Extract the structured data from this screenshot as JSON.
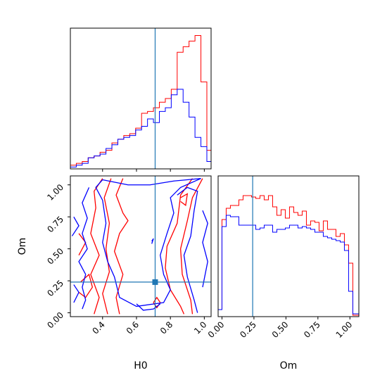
{
  "chart_data": [
    {
      "panel": "H0 marginal",
      "type": "step-histogram",
      "xlim": [
        0.21,
        1.04
      ],
      "truth": 0.71,
      "bin_edges": [
        0.21,
        0.245,
        0.28,
        0.315,
        0.35,
        0.385,
        0.42,
        0.455,
        0.49,
        0.525,
        0.56,
        0.595,
        0.63,
        0.665,
        0.7,
        0.735,
        0.77,
        0.805,
        0.84,
        0.875,
        0.91,
        0.945,
        0.98,
        1.015,
        1.04
      ],
      "series": [
        {
          "color": "#ff0000",
          "values": [
            0.02,
            0.03,
            0.04,
            0.06,
            0.07,
            0.09,
            0.1,
            0.14,
            0.16,
            0.18,
            0.19,
            0.22,
            0.3,
            0.31,
            0.33,
            0.36,
            0.38,
            0.43,
            0.63,
            0.66,
            0.69,
            0.72,
            0.47,
            0.1
          ]
        },
        {
          "color": "#0000ff",
          "values": [
            0.01,
            0.02,
            0.03,
            0.06,
            0.07,
            0.08,
            0.11,
            0.13,
            0.16,
            0.17,
            0.18,
            0.21,
            0.23,
            0.27,
            0.25,
            0.31,
            0.33,
            0.4,
            0.43,
            0.36,
            0.28,
            0.17,
            0.12,
            0.04
          ]
        }
      ],
      "x_ticks": [
        0.4,
        0.6,
        0.8,
        1.0
      ]
    },
    {
      "panel": "H0 vs Om",
      "type": "contour",
      "xlabel": "H0",
      "ylabel": "Om",
      "xlim": [
        0.21,
        1.04
      ],
      "ylim": [
        -0.03,
        1.07
      ],
      "x_ticks": [
        "0.4",
        "0.6",
        "0.8",
        "1.0"
      ],
      "y_ticks": [
        "0.00",
        "0.25",
        "0.50",
        "0.75",
        "1.00"
      ],
      "truth": {
        "H0": 0.71,
        "Om": 0.24
      },
      "series": [
        {
          "color": "#ff0000",
          "contours": [
            [
              [
                0.4,
                1.05
              ],
              [
                0.35,
                0.95
              ],
              [
                0.36,
                0.82
              ],
              [
                0.33,
                0.62
              ],
              [
                0.38,
                0.45
              ],
              [
                0.33,
                0.3
              ],
              [
                0.38,
                0.12
              ],
              [
                0.35,
                -0.01
              ]
            ],
            [
              [
                0.45,
                1.05
              ],
              [
                0.41,
                0.9
              ],
              [
                0.44,
                0.7
              ],
              [
                0.42,
                0.5
              ],
              [
                0.44,
                0.32
              ],
              [
                0.4,
                0.15
              ],
              [
                0.43,
                -0.01
              ]
            ],
            [
              [
                0.52,
                1.05
              ],
              [
                0.48,
                0.92
              ],
              [
                0.52,
                0.78
              ],
              [
                0.55,
                0.72
              ],
              [
                0.5,
                0.62
              ],
              [
                0.47,
                0.48
              ],
              [
                0.52,
                0.3
              ],
              [
                0.48,
                0.12
              ],
              [
                0.5,
                -0.01
              ]
            ],
            [
              [
                0.93,
                1.05
              ],
              [
                0.86,
                0.92
              ],
              [
                0.84,
                0.7
              ],
              [
                0.78,
                0.52
              ],
              [
                0.77,
                0.35
              ],
              [
                0.8,
                0.18
              ],
              [
                0.86,
                0.05
              ],
              [
                0.88,
                -0.01
              ]
            ],
            [
              [
                0.99,
                1.05
              ],
              [
                0.93,
                0.9
              ],
              [
                0.9,
                0.72
              ],
              [
                0.86,
                0.5
              ],
              [
                0.87,
                0.3
              ],
              [
                0.92,
                0.1
              ],
              [
                0.93,
                -0.01
              ]
            ],
            [
              [
                0.26,
                0.62
              ],
              [
                0.3,
                0.55
              ],
              [
                0.26,
                0.45
              ]
            ],
            [
              [
                0.27,
                0.24
              ],
              [
                0.32,
                0.3
              ],
              [
                0.34,
                0.2
              ],
              [
                0.3,
                0.12
              ],
              [
                0.26,
                0.16
              ]
            ],
            [
              [
                0.7,
                0.08
              ],
              [
                0.72,
                0.12
              ],
              [
                0.74,
                0.08
              ],
              [
                0.72,
                0.04
              ],
              [
                0.7,
                0.08
              ]
            ],
            [
              [
                0.86,
                0.9
              ],
              [
                0.9,
                0.93
              ],
              [
                0.89,
                0.84
              ],
              [
                0.86,
                0.87
              ]
            ]
          ]
        },
        {
          "color": "#0000ff",
          "contours": [
            [
              [
                0.4,
                1.04
              ],
              [
                0.55,
                1.0
              ],
              [
                0.68,
                1.0
              ],
              [
                0.82,
                1.03
              ],
              [
                0.98,
                1.05
              ],
              [
                0.86,
                0.98
              ],
              [
                0.8,
                0.9
              ],
              [
                0.82,
                0.78
              ],
              [
                0.78,
                0.62
              ],
              [
                0.74,
                0.45
              ],
              [
                0.76,
                0.3
              ],
              [
                0.8,
                0.18
              ],
              [
                0.76,
                0.08
              ],
              [
                0.6,
                0.05
              ],
              [
                0.5,
                0.12
              ],
              [
                0.47,
                0.28
              ],
              [
                0.43,
                0.4
              ],
              [
                0.4,
                0.55
              ],
              [
                0.42,
                0.7
              ],
              [
                0.4,
                0.88
              ],
              [
                0.36,
                0.98
              ],
              [
                0.4,
                1.04
              ]
            ],
            [
              [
                0.32,
                0.98
              ],
              [
                0.28,
                0.86
              ],
              [
                0.31,
                0.74
              ],
              [
                0.28,
                0.62
              ],
              [
                0.31,
                0.5
              ],
              [
                0.26,
                0.4
              ],
              [
                0.3,
                0.3
              ],
              [
                0.28,
                0.2
              ],
              [
                0.3,
                0.1
              ],
              [
                0.28,
                0.03
              ]
            ],
            [
              [
                0.23,
                0.75
              ],
              [
                0.26,
                0.68
              ],
              [
                0.22,
                0.6
              ]
            ],
            [
              [
                0.23,
                0.22
              ],
              [
                0.26,
                0.16
              ],
              [
                0.23,
                0.08
              ]
            ],
            [
              [
                0.84,
                0.92
              ],
              [
                0.9,
                0.98
              ],
              [
                0.96,
                0.95
              ],
              [
                0.94,
                0.8
              ],
              [
                0.92,
                0.6
              ],
              [
                0.88,
                0.45
              ],
              [
                0.9,
                0.28
              ],
              [
                0.94,
                0.1
              ],
              [
                0.96,
                0.0
              ]
            ],
            [
              [
                0.99,
                0.8
              ],
              [
                1.02,
                0.7
              ],
              [
                0.99,
                0.55
              ],
              [
                1.02,
                0.4
              ],
              [
                0.99,
                0.2
              ]
            ],
            [
              [
                0.69,
                0.56
              ],
              [
                0.7,
                0.58
              ],
              [
                0.69,
                0.54
              ]
            ],
            [
              [
                0.6,
                0.07
              ],
              [
                0.64,
                0.02
              ],
              [
                0.7,
                0.03
              ],
              [
                0.74,
                0.07
              ]
            ]
          ]
        }
      ]
    },
    {
      "panel": "Om marginal",
      "type": "step-histogram",
      "xlabel": "Om",
      "xlim": [
        -0.03,
        1.07
      ],
      "x_ticks": [
        "0.00",
        "0.25",
        "0.50",
        "0.75",
        "1.00"
      ],
      "truth": 0.24,
      "bin_edges": [
        -0.03,
        0.0,
        0.033,
        0.066,
        0.099,
        0.132,
        0.165,
        0.198,
        0.231,
        0.264,
        0.297,
        0.33,
        0.363,
        0.396,
        0.429,
        0.462,
        0.495,
        0.528,
        0.561,
        0.594,
        0.627,
        0.66,
        0.693,
        0.726,
        0.759,
        0.792,
        0.825,
        0.858,
        0.891,
        0.924,
        0.957,
        0.99,
        1.023,
        1.07
      ],
      "series": [
        {
          "color": "#ff0000",
          "values": [
            0.05,
            0.69,
            0.77,
            0.79,
            0.79,
            0.83,
            0.86,
            0.86,
            0.85,
            0.84,
            0.86,
            0.83,
            0.86,
            0.78,
            0.72,
            0.76,
            0.7,
            0.78,
            0.74,
            0.72,
            0.75,
            0.65,
            0.68,
            0.67,
            0.61,
            0.68,
            0.62,
            0.62,
            0.57,
            0.59,
            0.51,
            0.38,
            0.01
          ]
        },
        {
          "color": "#0000ff",
          "values": [
            0.05,
            0.64,
            0.72,
            0.71,
            0.71,
            0.65,
            0.65,
            0.65,
            0.65,
            0.62,
            0.63,
            0.65,
            0.65,
            0.6,
            0.62,
            0.62,
            0.63,
            0.65,
            0.65,
            0.63,
            0.64,
            0.63,
            0.62,
            0.6,
            0.6,
            0.57,
            0.56,
            0.55,
            0.54,
            0.53,
            0.47,
            0.18,
            0.02
          ]
        }
      ]
    }
  ],
  "colors": {
    "truth": "#1f77b4",
    "axis": "#000000"
  }
}
